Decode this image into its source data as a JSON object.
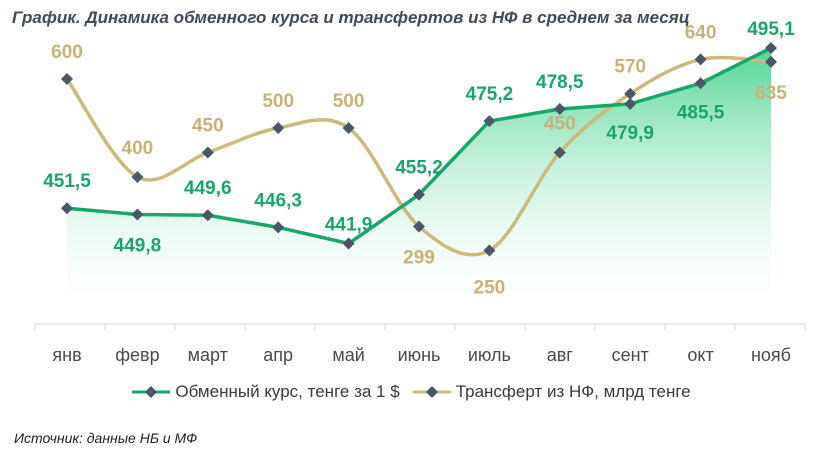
{
  "title": "График. Динамика обменного курса и трансфертов из НФ в среднем за месяц",
  "source": "Источник: данные НБ и МФ",
  "colors": {
    "exchange_line": "#1aa56a",
    "transfer_line": "#cbb97e",
    "exchange_label": "#1aa56a",
    "transfer_label": "#c7b27a",
    "marker": "#4a5866",
    "area_top": "#3ccf87",
    "axis": "#d5d5d5",
    "tick_text": "#4a4a4a"
  },
  "chart_data": {
    "type": "line",
    "categories": [
      "янв",
      "февр",
      "март",
      "апр",
      "май",
      "июнь",
      "июль",
      "авг",
      "сент",
      "окт",
      "нояб"
    ],
    "series": [
      {
        "name": "Обменный курс, тенге за 1 $",
        "values": [
          451.5,
          449.8,
          449.6,
          446.3,
          441.9,
          455.2,
          475.2,
          478.5,
          479.9,
          485.5,
          495.1
        ],
        "labels": [
          "451,5",
          "449,8",
          "449,6",
          "446,3",
          "441,9",
          "455,2",
          "475,2",
          "478,5",
          "479,9",
          "485,5",
          "495,1"
        ],
        "style": "straight-line-with-area",
        "ylim": [
          420,
          500
        ]
      },
      {
        "name": "Трансферт из НФ, млрд тенге",
        "values": [
          600,
          400,
          450,
          500,
          500,
          299,
          250,
          450,
          570,
          640,
          635
        ],
        "labels": [
          "600",
          "400",
          "450",
          "500",
          "500",
          "299",
          "250",
          "450",
          "570",
          "640",
          "635"
        ],
        "style": "smooth-line",
        "ylim": [
          100,
          700
        ]
      }
    ],
    "grid": false,
    "legend": "bottom"
  }
}
